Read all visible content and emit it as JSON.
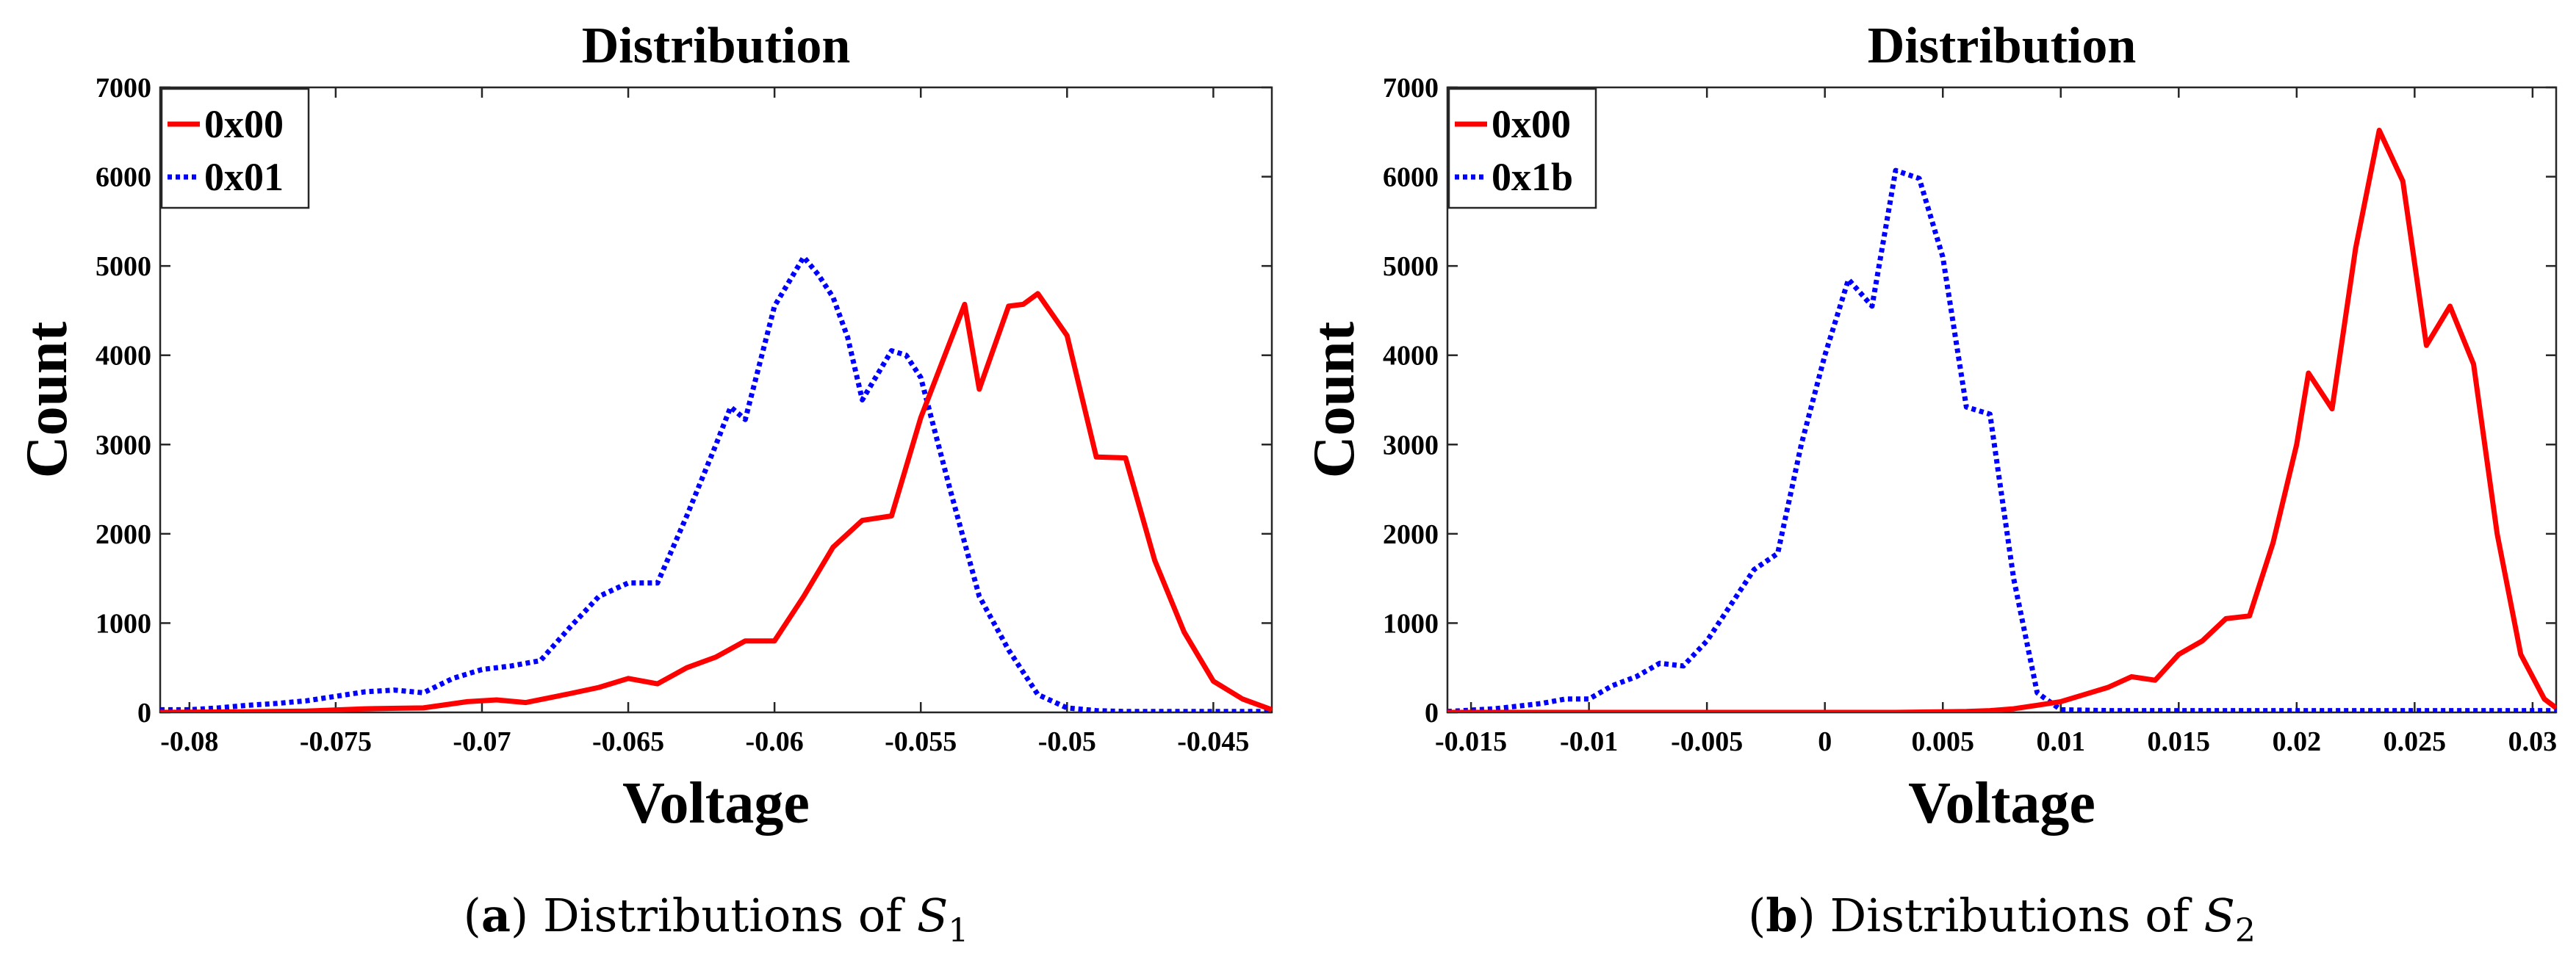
{
  "chart_data": [
    {
      "type": "line",
      "title": "Distribution",
      "xlabel": "Voltage",
      "ylabel": "Count",
      "xlim": [
        -0.081,
        -0.043
      ],
      "ylim": [
        0,
        7000
      ],
      "xticks": [
        -0.08,
        -0.075,
        -0.07,
        -0.065,
        -0.06,
        -0.055,
        -0.05,
        -0.045
      ],
      "xtick_labels": [
        "-0.08",
        "-0.075",
        "-0.07",
        "-0.065",
        "-0.06",
        "-0.055",
        "-0.05",
        "-0.045"
      ],
      "yticks": [
        0,
        1000,
        2000,
        3000,
        4000,
        5000,
        6000,
        7000
      ],
      "ytick_labels": [
        "0",
        "1000",
        "2000",
        "3000",
        "4000",
        "5000",
        "6000",
        "7000"
      ],
      "legend_position": "top-left",
      "caption": {
        "letter": "a",
        "text": "Distributions of",
        "symbol": "S",
        "subscript": "1"
      },
      "series": [
        {
          "name": "0x00",
          "color": "#ff0000",
          "style": "solid",
          "x": [
            -0.081,
            -0.0785,
            -0.076,
            -0.074,
            -0.072,
            -0.0705,
            -0.0695,
            -0.0685,
            -0.067,
            -0.066,
            -0.065,
            -0.064,
            -0.063,
            -0.062,
            -0.061,
            -0.06,
            -0.059,
            -0.058,
            -0.057,
            -0.056,
            -0.055,
            -0.054,
            -0.0535,
            -0.053,
            -0.052,
            -0.0515,
            -0.051,
            -0.05,
            -0.049,
            -0.048,
            -0.047,
            -0.046,
            -0.045,
            -0.044,
            -0.043
          ],
          "values": [
            0,
            5,
            15,
            40,
            50,
            120,
            140,
            110,
            210,
            280,
            380,
            320,
            500,
            620,
            800,
            800,
            1300,
            1850,
            2150,
            2200,
            3300,
            4150,
            4570,
            3620,
            4550,
            4570,
            4690,
            4220,
            2860,
            2850,
            1700,
            900,
            350,
            150,
            30
          ]
        },
        {
          "name": "0x01",
          "color": "#0000ff",
          "style": "dotted",
          "x": [
            -0.081,
            -0.08,
            -0.079,
            -0.078,
            -0.077,
            -0.076,
            -0.075,
            -0.074,
            -0.073,
            -0.072,
            -0.071,
            -0.07,
            -0.069,
            -0.068,
            -0.067,
            -0.066,
            -0.065,
            -0.064,
            -0.063,
            -0.062,
            -0.0615,
            -0.061,
            -0.06,
            -0.059,
            -0.0585,
            -0.058,
            -0.0575,
            -0.057,
            -0.056,
            -0.0555,
            -0.055,
            -0.054,
            -0.053,
            -0.052,
            -0.051,
            -0.05,
            -0.049,
            -0.048,
            -0.047,
            -0.046,
            -0.045,
            -0.044,
            -0.043
          ],
          "values": [
            30,
            30,
            50,
            80,
            100,
            130,
            180,
            230,
            250,
            220,
            380,
            480,
            520,
            580,
            950,
            1300,
            1450,
            1450,
            2200,
            3000,
            3420,
            3280,
            4550,
            5100,
            4900,
            4650,
            4200,
            3500,
            4050,
            4000,
            3750,
            2500,
            1300,
            700,
            200,
            50,
            20,
            10,
            10,
            10,
            10,
            10,
            10
          ]
        }
      ]
    },
    {
      "type": "line",
      "title": "Distribution",
      "xlabel": "Voltage",
      "ylabel": "Count",
      "xlim": [
        -0.016,
        0.031
      ],
      "ylim": [
        0,
        7000
      ],
      "xticks": [
        -0.015,
        -0.01,
        -0.005,
        0,
        0.005,
        0.01,
        0.015,
        0.02,
        0.025,
        0.03
      ],
      "xtick_labels": [
        "-0.015",
        "-0.01",
        "-0.005",
        "0",
        "0.005",
        "0.01",
        "0.015",
        "0.02",
        "0.025",
        "0.03"
      ],
      "yticks": [
        0,
        1000,
        2000,
        3000,
        4000,
        5000,
        6000,
        7000
      ],
      "ytick_labels": [
        "0",
        "1000",
        "2000",
        "3000",
        "4000",
        "5000",
        "6000",
        "7000"
      ],
      "legend_position": "top-left",
      "caption": {
        "letter": "b",
        "text": "Distributions of",
        "symbol": "S",
        "subscript": "2"
      },
      "series": [
        {
          "name": "0x00",
          "color": "#ff0000",
          "style": "solid",
          "x": [
            -0.016,
            -0.01,
            -0.005,
            0.0,
            0.003,
            0.006,
            0.007,
            0.008,
            0.009,
            0.01,
            0.011,
            0.012,
            0.013,
            0.014,
            0.015,
            0.016,
            0.017,
            0.018,
            0.019,
            0.02,
            0.0205,
            0.0215,
            0.0225,
            0.0235,
            0.0245,
            0.0255,
            0.0265,
            0.0275,
            0.0285,
            0.0295,
            0.0305,
            0.031
          ],
          "values": [
            0,
            0,
            0,
            0,
            0,
            10,
            20,
            40,
            80,
            120,
            200,
            280,
            400,
            360,
            650,
            800,
            1050,
            1080,
            1900,
            3000,
            3800,
            3400,
            5200,
            6520,
            5950,
            4110,
            4550,
            3900,
            2000,
            650,
            150,
            50
          ]
        },
        {
          "name": "0x1b",
          "color": "#0000ff",
          "style": "dotted",
          "x": [
            -0.016,
            -0.014,
            -0.012,
            -0.011,
            -0.01,
            -0.009,
            -0.008,
            -0.007,
            -0.006,
            -0.005,
            -0.004,
            -0.003,
            -0.002,
            -0.001,
            0.0,
            0.001,
            0.002,
            0.003,
            0.004,
            0.005,
            0.006,
            0.007,
            0.008,
            0.009,
            0.01,
            0.012,
            0.016,
            0.02,
            0.025,
            0.031
          ],
          "values": [
            10,
            40,
            100,
            150,
            150,
            300,
            400,
            550,
            520,
            800,
            1200,
            1600,
            1780,
            3000,
            4000,
            4850,
            4550,
            6070,
            5980,
            5100,
            3420,
            3340,
            1500,
            220,
            30,
            20,
            20,
            20,
            20,
            20
          ]
        }
      ]
    }
  ]
}
